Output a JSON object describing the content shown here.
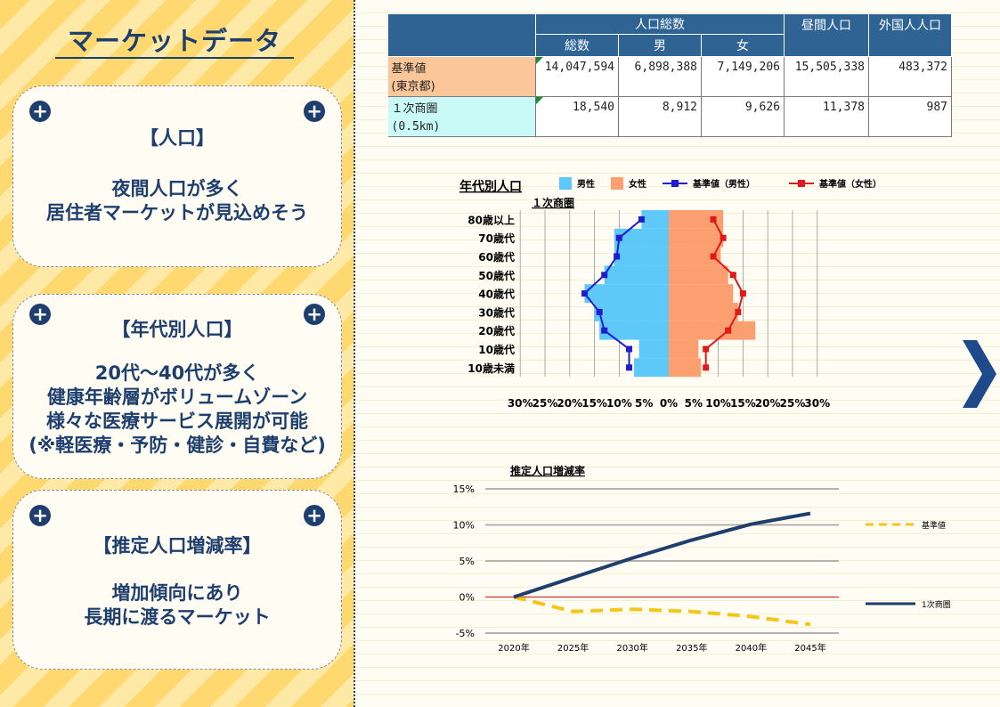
{
  "title": "マーケットデータ",
  "cards": [
    {
      "head": "【人口】",
      "body": "夜間人口が多く\n居住者マーケットが見込めそう"
    },
    {
      "head": "【年代別人口】",
      "body": "20代～40代が多く\n健康年齢層がボリュームゾーン\n様々な医療サービス展開が可能\n(※軽医療・予防・健診・自費など)"
    },
    {
      "head": "【推定人口増減率】",
      "body": "増加傾向にあり\n長期に渡るマーケット"
    }
  ],
  "table": {
    "group_header": "人口総数",
    "sub_headers": [
      "総数",
      "男",
      "女"
    ],
    "daytime_header": "昼間人口",
    "foreign_header": "外国人人口",
    "rows": [
      {
        "label1": "基準値",
        "label2": "(東京都)",
        "total": "14,047,594",
        "male": "6,898,388",
        "female": "7,149,206",
        "daytime": "15,505,338",
        "foreign": "483,372"
      },
      {
        "label1": "１次商圏",
        "label2": "(0.5km)",
        "total": "18,540",
        "male": "8,912",
        "female": "9,626",
        "daytime": "11,378",
        "foreign": "987"
      }
    ]
  },
  "chart_data": [
    {
      "type": "bar",
      "title": "年代別人口",
      "subtitle": "１次商圏",
      "categories": [
        "80歳以上",
        "70歳代",
        "60歳代",
        "50歳代",
        "40歳代",
        "30歳代",
        "20歳代",
        "10歳代",
        "10歳未満"
      ],
      "series": [
        {
          "name": "男性",
          "color": "#5ec8f8",
          "values": [
            5.5,
            11,
            11,
            13,
            17,
            15,
            14,
            6,
            7
          ]
        },
        {
          "name": "女性",
          "color": "#fb9e70",
          "values": [
            11,
            11,
            10.5,
            12,
            13,
            14,
            17.5,
            6,
            6.5
          ]
        },
        {
          "name": "基準値（男性）",
          "color": "#1e1ed0",
          "values": [
            5.5,
            10,
            10.5,
            13,
            17,
            14,
            13,
            8,
            8
          ]
        },
        {
          "name": "基準値（女性）",
          "color": "#e01a1a",
          "values": [
            9,
            11,
            9,
            13,
            15,
            14,
            12,
            7.5,
            7.5
          ]
        }
      ],
      "xticks": [
        "30%",
        "25%",
        "20%",
        "15%",
        "10%",
        "5%",
        "0%",
        "5%",
        "10%",
        "15%",
        "20%",
        "25%",
        "30%"
      ],
      "xlim": [
        -30,
        30
      ]
    },
    {
      "type": "line",
      "title": "推定人口増減率",
      "categories": [
        "2020年",
        "2025年",
        "2030年",
        "2035年",
        "2040年",
        "2045年"
      ],
      "yticks": [
        "15%",
        "10%",
        "5%",
        "0%",
        "-5%"
      ],
      "ylim": [
        -5,
        15
      ],
      "series": [
        {
          "name": "基準値",
          "color": "#f5c518",
          "dashed": true,
          "values": [
            0,
            -2,
            -1.7,
            -2,
            -2.7,
            -3.8
          ]
        },
        {
          "name": "1次商圏",
          "color": "#1e3f6e",
          "dashed": false,
          "values": [
            0,
            2.7,
            5.4,
            7.9,
            10.1,
            11.6
          ]
        }
      ]
    }
  ]
}
